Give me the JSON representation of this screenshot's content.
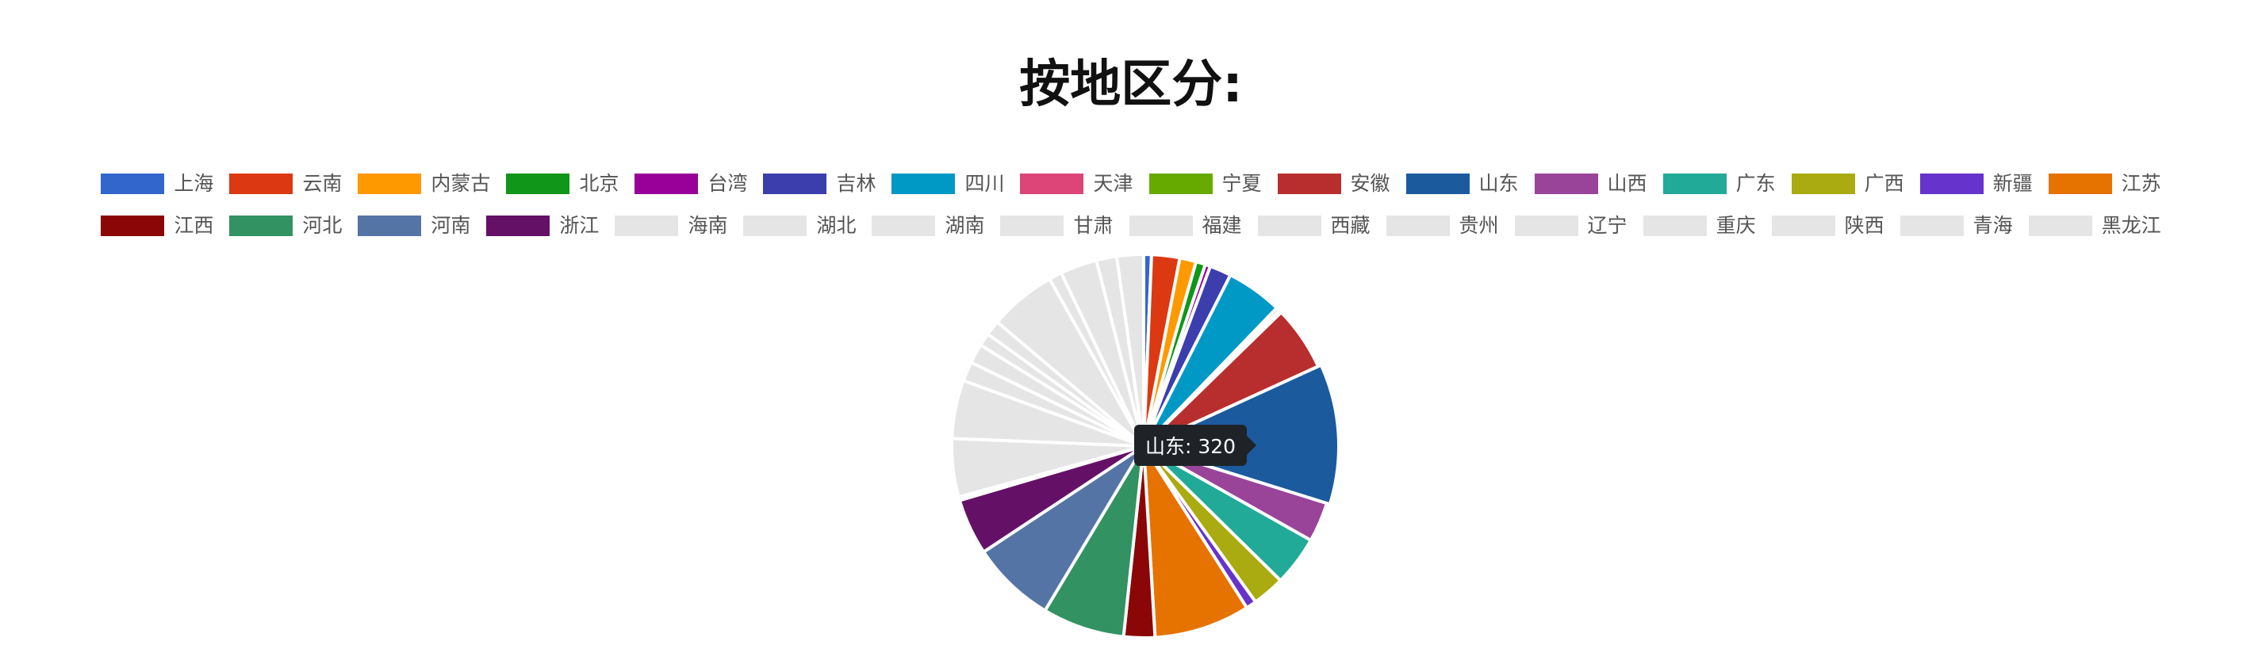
{
  "chart_data": {
    "type": "pie",
    "title": "按地区分:",
    "legend_position": "top",
    "tooltip": {
      "label": "山东",
      "value": 320,
      "text": "山东: 320"
    },
    "slices": [
      {
        "label": "上海",
        "value": 18,
        "color": "#3366cc",
        "visible": true
      },
      {
        "label": "云南",
        "value": 65,
        "color": "#dc3912",
        "visible": true
      },
      {
        "label": "内蒙古",
        "value": 38,
        "color": "#ff9900",
        "visible": true
      },
      {
        "label": "北京",
        "value": 22,
        "color": "#109618",
        "visible": true
      },
      {
        "label": "台湾",
        "value": 12,
        "color": "#990099",
        "visible": true
      },
      {
        "label": "吉林",
        "value": 50,
        "color": "#3b3eac",
        "visible": true
      },
      {
        "label": "四川",
        "value": 130,
        "color": "#0099c6",
        "visible": true
      },
      {
        "label": "天津",
        "value": 8,
        "color": "#dd4477",
        "visible": true
      },
      {
        "label": "宁夏",
        "value": 6,
        "color": "#66aa00",
        "visible": true
      },
      {
        "label": "安徽",
        "value": 150,
        "color": "#b82e2e",
        "visible": true
      },
      {
        "label": "山东",
        "value": 320,
        "color": "#1c5a9e",
        "visible": true
      },
      {
        "label": "山西",
        "value": 92,
        "color": "#994499",
        "visible": true
      },
      {
        "label": "广东",
        "value": 115,
        "color": "#22aa99",
        "visible": true
      },
      {
        "label": "广西",
        "value": 75,
        "color": "#aaaa11",
        "visible": true
      },
      {
        "label": "新疆",
        "value": 24,
        "color": "#6633cc",
        "visible": true
      },
      {
        "label": "江苏",
        "value": 222,
        "color": "#e67300",
        "visible": true
      },
      {
        "label": "江西",
        "value": 72,
        "color": "#8b0707",
        "visible": true
      },
      {
        "label": "河北",
        "value": 190,
        "color": "#329262",
        "visible": true
      },
      {
        "label": "河南",
        "value": 195,
        "color": "#5574a6",
        "visible": true
      },
      {
        "label": "浙江",
        "value": 130,
        "color": "#651067",
        "visible": true
      },
      {
        "label": "海南",
        "value": 8,
        "color": "#e5e5e5",
        "visible": false
      },
      {
        "label": "湖北",
        "value": 135,
        "color": "#e5e5e5",
        "visible": false
      },
      {
        "label": "湖南",
        "value": 135,
        "color": "#e5e5e5",
        "visible": false
      },
      {
        "label": "甘肃",
        "value": 45,
        "color": "#e5e5e5",
        "visible": false
      },
      {
        "label": "福建",
        "value": 45,
        "color": "#e5e5e5",
        "visible": false
      },
      {
        "label": "西藏",
        "value": 30,
        "color": "#e5e5e5",
        "visible": false
      },
      {
        "label": "贵州",
        "value": 35,
        "color": "#e5e5e5",
        "visible": false
      },
      {
        "label": "辽宁",
        "value": 155,
        "color": "#e5e5e5",
        "visible": false
      },
      {
        "label": "重庆",
        "value": 30,
        "color": "#e5e5e5",
        "visible": false
      },
      {
        "label": "陕西",
        "value": 85,
        "color": "#e5e5e5",
        "visible": false
      },
      {
        "label": "青海",
        "value": 47,
        "color": "#e5e5e5",
        "visible": false
      },
      {
        "label": "黑龙江",
        "value": 62,
        "color": "#e5e5e5",
        "visible": false
      }
    ]
  }
}
